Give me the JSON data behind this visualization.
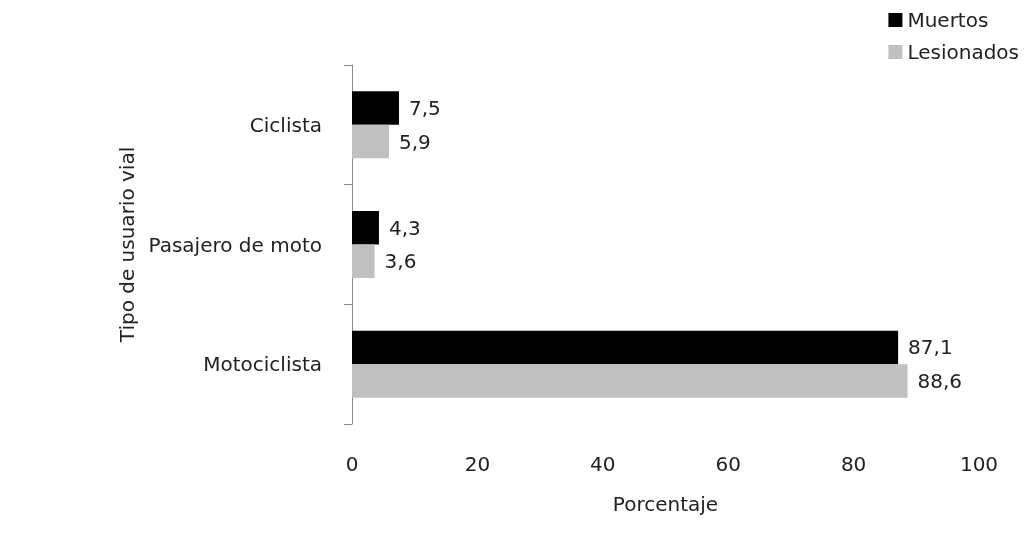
{
  "chart_data": {
    "type": "bar",
    "orientation": "horizontal",
    "xlabel": "Porcentaje",
    "ylabel": "Tipo de usuario vial",
    "categories": [
      "Ciclista",
      "Pasajero de moto",
      "Motociclista"
    ],
    "series": [
      {
        "name": "Muertos",
        "color": "#000000",
        "values": [
          7.5,
          4.3,
          87.1
        ],
        "value_labels": [
          "7,5",
          "4,3",
          "87,1"
        ]
      },
      {
        "name": "Lesionados",
        "color": "#c0c0c0",
        "values": [
          5.9,
          3.6,
          88.6
        ],
        "value_labels": [
          "5,9",
          "3,6",
          "88,6"
        ]
      }
    ],
    "xlim": [
      0,
      100
    ],
    "xticks": [
      0,
      20,
      40,
      60,
      80,
      100
    ],
    "legend": "top right"
  }
}
